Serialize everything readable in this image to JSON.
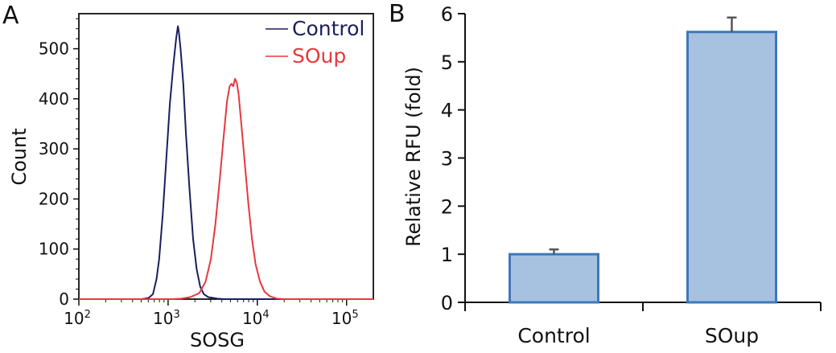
{
  "chart_data": [
    {
      "panel": "A",
      "type": "line",
      "xlabel": "SOSG",
      "ylabel": "Count",
      "x_scale": "log10",
      "xlim_exp": [
        2,
        5.3
      ],
      "ylim": [
        0,
        570
      ],
      "x_tick_base": "10",
      "x_tick_exponents": [
        "2",
        "3",
        "4",
        "5"
      ],
      "y_ticks": [
        "0",
        "100",
        "200",
        "300",
        "400",
        "500"
      ],
      "legend": [
        "Control",
        "SOup"
      ],
      "series": [
        {
          "name": "Control",
          "color": "#1a1f5e",
          "points": [
            [
              2.0,
              0
            ],
            [
              2.7,
              0
            ],
            [
              2.78,
              2
            ],
            [
              2.83,
              10
            ],
            [
              2.87,
              40
            ],
            [
              2.9,
              80
            ],
            [
              2.94,
              170
            ],
            [
              2.98,
              280
            ],
            [
              3.02,
              390
            ],
            [
              3.06,
              470
            ],
            [
              3.09,
              520
            ],
            [
              3.11,
              545
            ],
            [
              3.12,
              535
            ],
            [
              3.14,
              500
            ],
            [
              3.17,
              430
            ],
            [
              3.2,
              330
            ],
            [
              3.24,
              220
            ],
            [
              3.28,
              120
            ],
            [
              3.32,
              60
            ],
            [
              3.36,
              25
            ],
            [
              3.4,
              10
            ],
            [
              3.45,
              4
            ],
            [
              3.55,
              1
            ],
            [
              3.62,
              0
            ],
            [
              5.3,
              0
            ]
          ]
        },
        {
          "name": "SOup",
          "color": "#e8383d",
          "points": [
            [
              2.0,
              0
            ],
            [
              3.05,
              0
            ],
            [
              3.15,
              1
            ],
            [
              3.25,
              4
            ],
            [
              3.35,
              12
            ],
            [
              3.42,
              35
            ],
            [
              3.48,
              80
            ],
            [
              3.53,
              150
            ],
            [
              3.58,
              240
            ],
            [
              3.62,
              320
            ],
            [
              3.66,
              395
            ],
            [
              3.69,
              425
            ],
            [
              3.71,
              430
            ],
            [
              3.73,
              425
            ],
            [
              3.75,
              440
            ],
            [
              3.77,
              432
            ],
            [
              3.79,
              410
            ],
            [
              3.82,
              350
            ],
            [
              3.86,
              270
            ],
            [
              3.9,
              190
            ],
            [
              3.94,
              120
            ],
            [
              3.98,
              70
            ],
            [
              4.03,
              35
            ],
            [
              4.08,
              15
            ],
            [
              4.14,
              6
            ],
            [
              4.22,
              1
            ],
            [
              4.3,
              0
            ],
            [
              5.3,
              0
            ]
          ]
        }
      ]
    },
    {
      "panel": "B",
      "type": "bar",
      "categories": [
        "Control",
        "SOup"
      ],
      "values": [
        1.0,
        5.62
      ],
      "errors": [
        0.1,
        0.3
      ],
      "ylabel": "Relative RFU (fold)",
      "ylim": [
        0,
        6
      ],
      "y_ticks": [
        "0",
        "1",
        "2",
        "3",
        "4",
        "5",
        "6"
      ],
      "bar_color": "#a7c2e0",
      "bar_edge_color": "#3d78bb"
    }
  ]
}
